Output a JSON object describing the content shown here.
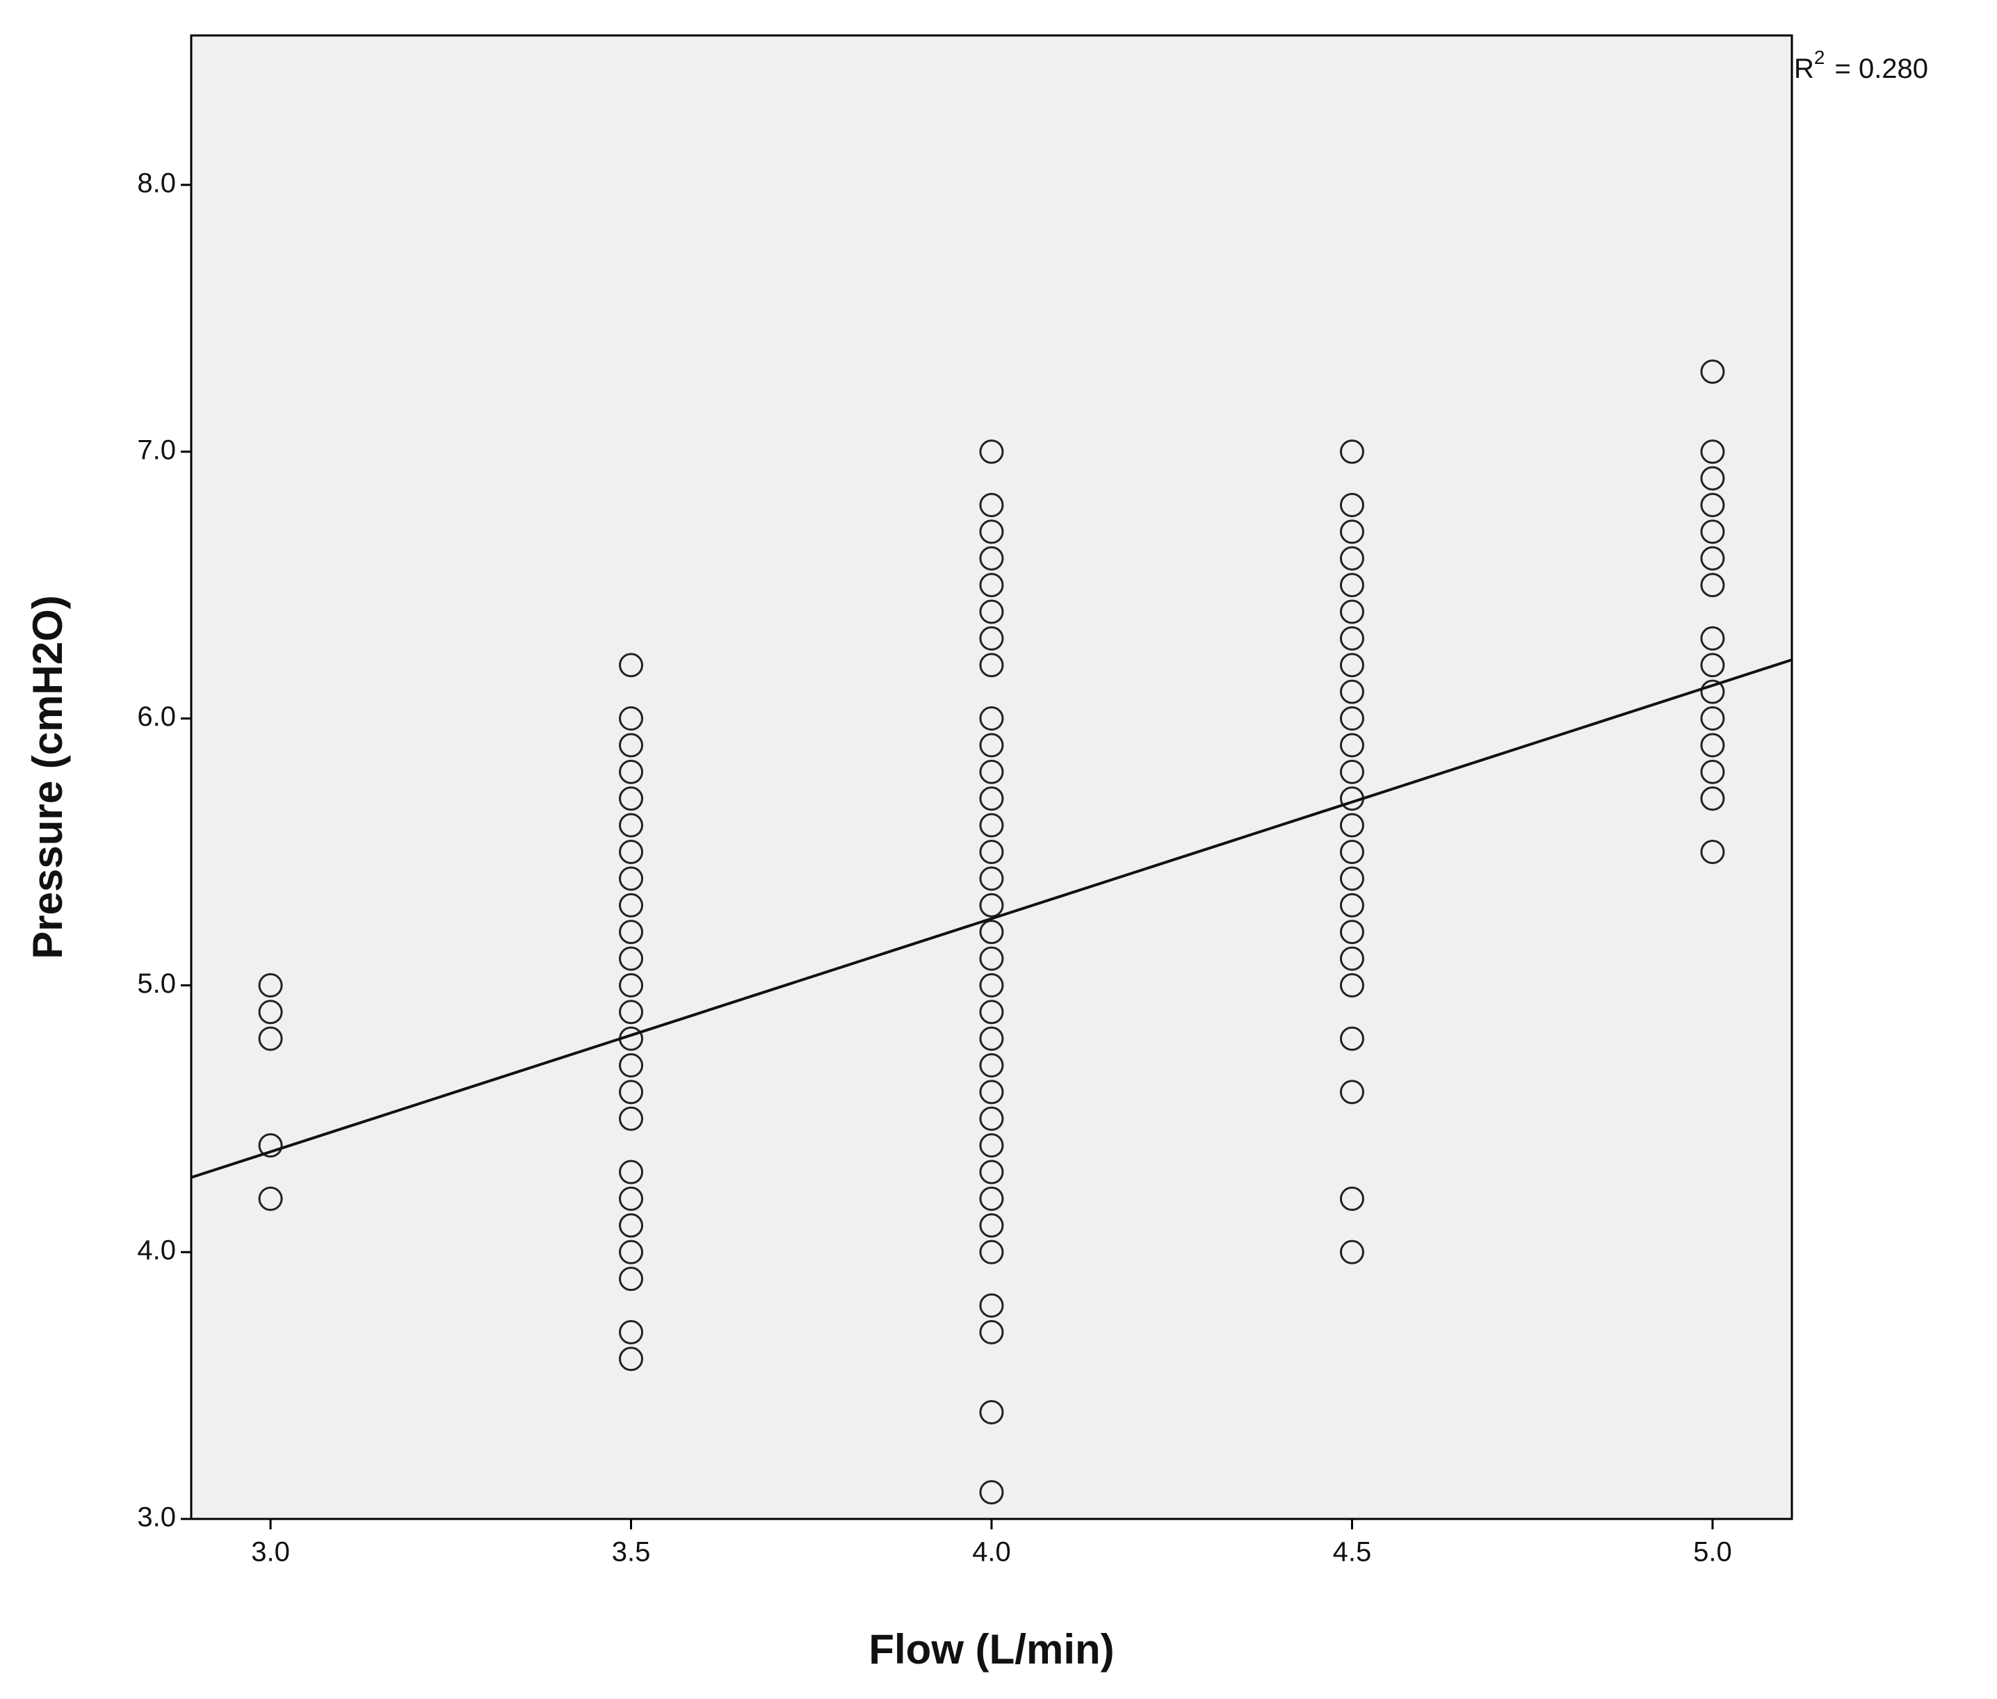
{
  "chart_data": {
    "type": "scatter",
    "x_label": "Flow (L/min)",
    "y_label": "Pressure (cmH2O)",
    "r2_symbol": "R",
    "r2_exponent": "2",
    "r2_value": "= 0.280",
    "xlim": [
      2.89,
      5.11
    ],
    "ylim": [
      3.0,
      8.56
    ],
    "xticks": [
      {
        "value": 3.0,
        "label": "3.0"
      },
      {
        "value": 3.5,
        "label": "3.5"
      },
      {
        "value": 4.0,
        "label": "4.0"
      },
      {
        "value": 4.5,
        "label": "4.5"
      },
      {
        "value": 5.0,
        "label": "5.0"
      }
    ],
    "yticks": [
      {
        "value": 3.0,
        "label": "3.0"
      },
      {
        "value": 4.0,
        "label": "4.0"
      },
      {
        "value": 5.0,
        "label": "5.0"
      },
      {
        "value": 6.0,
        "label": "6.0"
      },
      {
        "value": 7.0,
        "label": "7.0"
      },
      {
        "value": 8.0,
        "label": "8.0"
      }
    ],
    "background": "#f0f0f0",
    "marker_color": "#222222",
    "line_color": "#111111",
    "fit_line": {
      "x": [
        2.89,
        5.11
      ],
      "y": [
        4.28,
        6.22
      ]
    },
    "x": [
      3.0,
      3.0,
      3.0,
      3.0,
      3.0,
      3.5,
      3.5,
      3.5,
      3.5,
      3.5,
      3.5,
      3.5,
      3.5,
      3.5,
      3.5,
      3.5,
      3.5,
      3.5,
      3.5,
      3.5,
      3.5,
      3.5,
      3.5,
      3.5,
      3.5,
      3.5,
      3.5,
      3.5,
      3.5,
      4.0,
      4.0,
      4.0,
      4.0,
      4.0,
      4.0,
      4.0,
      4.0,
      4.0,
      4.0,
      4.0,
      4.0,
      4.0,
      4.0,
      4.0,
      4.0,
      4.0,
      4.0,
      4.0,
      4.0,
      4.0,
      4.0,
      4.0,
      4.0,
      4.0,
      4.0,
      4.0,
      4.0,
      4.0,
      4.0,
      4.0,
      4.0,
      4.0,
      4.5,
      4.5,
      4.5,
      4.5,
      4.5,
      4.5,
      4.5,
      4.5,
      4.5,
      4.5,
      4.5,
      4.5,
      4.5,
      4.5,
      4.5,
      4.5,
      4.5,
      4.5,
      4.5,
      4.5,
      4.5,
      4.5,
      4.5,
      4.5,
      5.0,
      5.0,
      5.0,
      5.0,
      5.0,
      5.0,
      5.0,
      5.0,
      5.0,
      5.0,
      5.0,
      5.0,
      5.0,
      5.0,
      5.0
    ],
    "y": [
      5.0,
      4.9,
      4.8,
      4.4,
      4.2,
      6.2,
      6.0,
      5.9,
      5.8,
      5.7,
      5.6,
      5.5,
      5.4,
      5.3,
      5.2,
      5.1,
      5.0,
      4.9,
      4.8,
      4.7,
      4.6,
      4.5,
      4.3,
      4.2,
      4.1,
      4.0,
      3.9,
      3.7,
      3.6,
      7.0,
      6.8,
      6.7,
      6.6,
      6.5,
      6.4,
      6.3,
      6.2,
      6.0,
      5.9,
      5.8,
      5.7,
      5.6,
      5.5,
      5.4,
      5.3,
      5.2,
      5.1,
      5.0,
      4.9,
      4.8,
      4.7,
      4.6,
      4.5,
      4.4,
      4.3,
      4.2,
      4.1,
      4.0,
      3.8,
      3.7,
      3.4,
      3.1,
      7.0,
      6.8,
      6.7,
      6.6,
      6.5,
      6.4,
      6.3,
      6.2,
      6.1,
      6.0,
      5.9,
      5.8,
      5.7,
      5.6,
      5.5,
      5.4,
      5.3,
      5.2,
      5.1,
      5.0,
      4.8,
      4.6,
      4.2,
      4.0,
      7.3,
      7.0,
      6.9,
      6.8,
      6.7,
      6.6,
      6.5,
      6.3,
      6.2,
      6.1,
      6.0,
      5.9,
      5.8,
      5.7,
      5.5
    ]
  }
}
